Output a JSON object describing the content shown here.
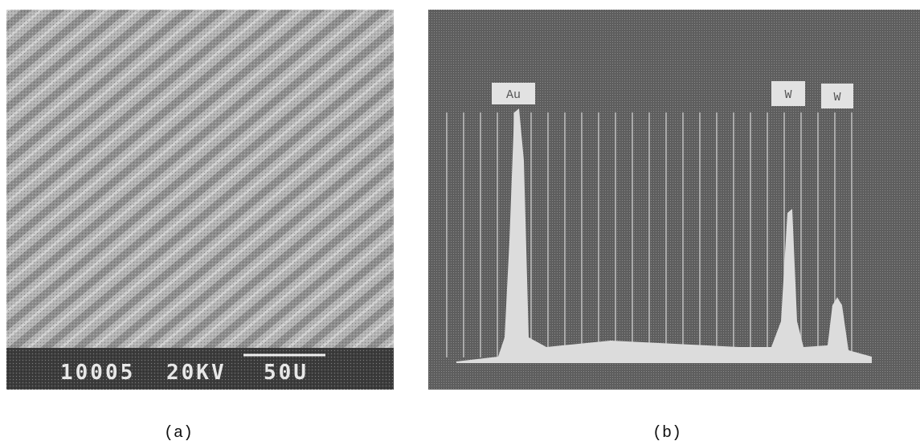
{
  "panels": [
    {
      "caption": "(a)",
      "info_bar": [
        "10005",
        "20KV",
        "50U"
      ]
    },
    {
      "caption": "(b)",
      "peak_labels": [
        "Au",
        "W",
        "W"
      ]
    }
  ]
}
